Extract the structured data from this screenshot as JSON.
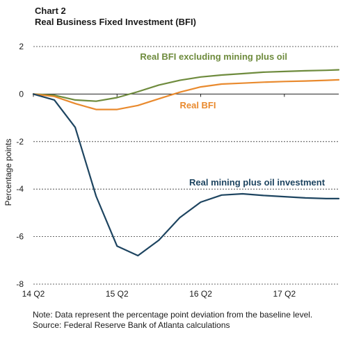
{
  "header": {
    "chart_number": "Chart 2",
    "title": "Real Business  Fixed Investment (BFI)"
  },
  "footer": {
    "note": "Note: Data represent the percentage point deviation from the baseline level.",
    "source": "Source: Federal Reserve Bank of Atlanta calculations"
  },
  "chart_data": {
    "type": "line",
    "title": "Real Business  Fixed Investment (BFI)",
    "xlabel": "",
    "ylabel": "Percentage points",
    "ylim": [
      -8,
      2
    ],
    "yticks": [
      2,
      0,
      -2,
      -4,
      -6,
      -8
    ],
    "x_tick_labels": [
      {
        "t": 0,
        "label": "14 Q2"
      },
      {
        "t": 4,
        "label": "15 Q2"
      },
      {
        "t": 8,
        "label": "16 Q2"
      },
      {
        "t": 12,
        "label": "17 Q2"
      }
    ],
    "x_range": [
      0,
      14.6
    ],
    "gridlines": "horizontal dashed",
    "series": [
      {
        "name": "Real BFI excluding mining plus oil",
        "color": "#6e8b3d",
        "label_anchor": {
          "t": 5.1,
          "y": 1.45
        },
        "x": [
          0,
          1,
          2,
          3,
          4,
          5,
          6,
          7,
          8,
          9,
          10,
          11,
          12,
          13,
          14,
          14.6
        ],
        "values": [
          0,
          -0.05,
          -0.25,
          -0.3,
          -0.15,
          0.1,
          0.38,
          0.58,
          0.72,
          0.8,
          0.86,
          0.92,
          0.95,
          0.98,
          1.0,
          1.02
        ]
      },
      {
        "name": "Real BFI",
        "color": "#e98a2e",
        "label_anchor": {
          "t": 7.0,
          "y": -0.6
        },
        "x": [
          0,
          1,
          2,
          3,
          4,
          5,
          6,
          7,
          8,
          9,
          10,
          11,
          12,
          13,
          14,
          14.6
        ],
        "values": [
          0,
          -0.1,
          -0.4,
          -0.65,
          -0.65,
          -0.48,
          -0.2,
          0.08,
          0.3,
          0.42,
          0.46,
          0.5,
          0.53,
          0.55,
          0.58,
          0.6
        ]
      },
      {
        "name": "Real mining plus oil investment",
        "color": "#1d4460",
        "label_anchor": {
          "t": 7.45,
          "y": -3.85
        },
        "x": [
          0,
          1,
          2,
          3,
          4,
          5,
          6,
          7,
          8,
          9,
          10,
          11,
          12,
          13,
          14,
          14.6
        ],
        "values": [
          0,
          -0.25,
          -1.4,
          -4.3,
          -6.4,
          -6.8,
          -6.15,
          -5.2,
          -4.55,
          -4.25,
          -4.2,
          -4.27,
          -4.32,
          -4.37,
          -4.4,
          -4.4
        ]
      }
    ]
  }
}
